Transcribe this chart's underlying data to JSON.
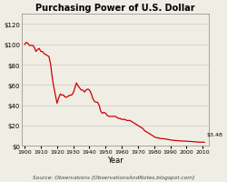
{
  "title": "Purchasing Power of U.S. Dollar",
  "xlabel": "Year",
  "source_text": "Source: Observations [ObservationsAndNotes.blogspot.com]",
  "end_label": "$3.48",
  "background_color": "#f0ede4",
  "plot_bg_color": "#f0ede4",
  "line_color": "#cc0000",
  "yticks": [
    0,
    20,
    40,
    60,
    80,
    100,
    120
  ],
  "ylabels": [
    "$0",
    "$20",
    "$40",
    "$60",
    "$80",
    "$100",
    "$120"
  ],
  "xticks": [
    1900,
    1910,
    1920,
    1930,
    1940,
    1950,
    1960,
    1970,
    1980,
    1990,
    2000,
    2010
  ],
  "xlim": [
    1898,
    2014
  ],
  "ylim": [
    0,
    130
  ],
  "data": [
    [
      1900,
      100
    ],
    [
      1901,
      102
    ],
    [
      1902,
      101
    ],
    [
      1903,
      99
    ],
    [
      1904,
      99
    ],
    [
      1905,
      99
    ],
    [
      1906,
      97
    ],
    [
      1907,
      93
    ],
    [
      1908,
      95
    ],
    [
      1909,
      96
    ],
    [
      1910,
      93
    ],
    [
      1911,
      93
    ],
    [
      1912,
      91
    ],
    [
      1913,
      90
    ],
    [
      1914,
      89
    ],
    [
      1915,
      88
    ],
    [
      1916,
      81
    ],
    [
      1917,
      68
    ],
    [
      1918,
      58
    ],
    [
      1919,
      50
    ],
    [
      1920,
      42
    ],
    [
      1921,
      47
    ],
    [
      1922,
      51
    ],
    [
      1923,
      50
    ],
    [
      1924,
      50
    ],
    [
      1925,
      48
    ],
    [
      1926,
      48
    ],
    [
      1927,
      49
    ],
    [
      1928,
      50
    ],
    [
      1929,
      50
    ],
    [
      1930,
      52
    ],
    [
      1931,
      57
    ],
    [
      1932,
      62
    ],
    [
      1933,
      59
    ],
    [
      1934,
      57
    ],
    [
      1935,
      55
    ],
    [
      1936,
      55
    ],
    [
      1937,
      53
    ],
    [
      1938,
      55
    ],
    [
      1939,
      56
    ],
    [
      1940,
      55
    ],
    [
      1941,
      52
    ],
    [
      1942,
      47
    ],
    [
      1943,
      44
    ],
    [
      1944,
      43
    ],
    [
      1945,
      43
    ],
    [
      1946,
      40
    ],
    [
      1947,
      34
    ],
    [
      1948,
      32
    ],
    [
      1949,
      33
    ],
    [
      1950,
      32
    ],
    [
      1951,
      30
    ],
    [
      1952,
      29
    ],
    [
      1953,
      29
    ],
    [
      1954,
      29
    ],
    [
      1955,
      29
    ],
    [
      1956,
      29
    ],
    [
      1957,
      28
    ],
    [
      1958,
      27
    ],
    [
      1959,
      27
    ],
    [
      1960,
      26
    ],
    [
      1961,
      26
    ],
    [
      1962,
      26
    ],
    [
      1963,
      25
    ],
    [
      1964,
      25
    ],
    [
      1965,
      25
    ],
    [
      1966,
      24
    ],
    [
      1967,
      23
    ],
    [
      1968,
      22
    ],
    [
      1969,
      21
    ],
    [
      1970,
      20
    ],
    [
      1971,
      19
    ],
    [
      1972,
      18
    ],
    [
      1973,
      17
    ],
    [
      1974,
      15
    ],
    [
      1975,
      14
    ],
    [
      1976,
      13
    ],
    [
      1977,
      12
    ],
    [
      1978,
      11
    ],
    [
      1979,
      10
    ],
    [
      1980,
      9
    ],
    [
      1981,
      8
    ],
    [
      1982,
      8
    ],
    [
      1983,
      7.5
    ],
    [
      1984,
      7.2
    ],
    [
      1985,
      7.0
    ],
    [
      1986,
      6.9
    ],
    [
      1987,
      6.7
    ],
    [
      1988,
      6.4
    ],
    [
      1989,
      6.1
    ],
    [
      1990,
      5.8
    ],
    [
      1991,
      5.5
    ],
    [
      1992,
      5.4
    ],
    [
      1993,
      5.2
    ],
    [
      1994,
      5.1
    ],
    [
      1995,
      5.0
    ],
    [
      1996,
      4.8
    ],
    [
      1997,
      4.7
    ],
    [
      1998,
      4.7
    ],
    [
      1999,
      4.6
    ],
    [
      2000,
      4.5
    ],
    [
      2001,
      4.3
    ],
    [
      2002,
      4.3
    ],
    [
      2003,
      4.2
    ],
    [
      2004,
      4.1
    ],
    [
      2005,
      3.9
    ],
    [
      2006,
      3.8
    ],
    [
      2007,
      3.7
    ],
    [
      2008,
      3.6
    ],
    [
      2009,
      3.6
    ],
    [
      2010,
      3.5
    ],
    [
      2011,
      3.48
    ]
  ]
}
